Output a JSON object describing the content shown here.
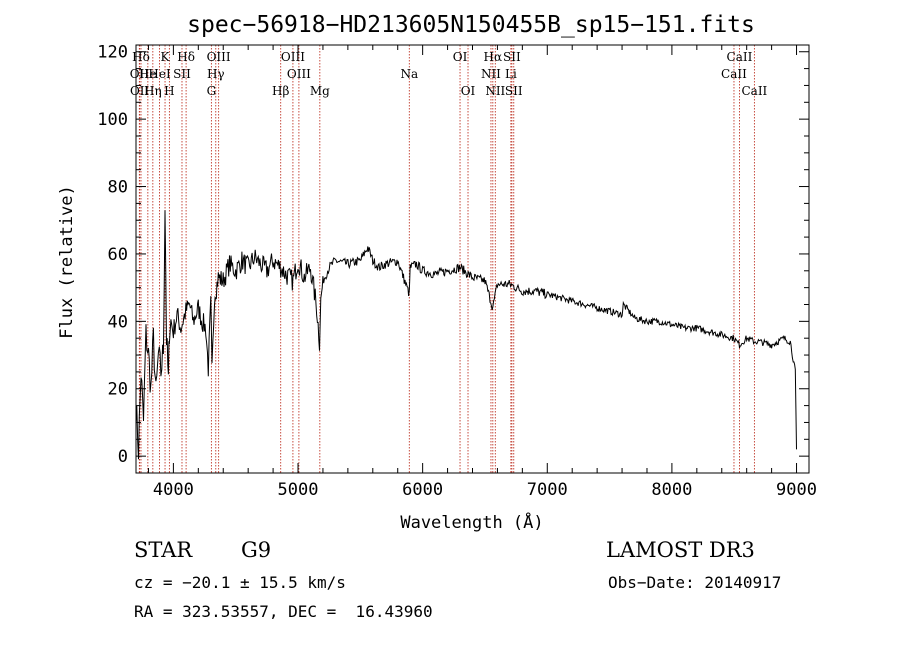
{
  "chart_data": {
    "type": "line",
    "title": "spec−56918−HD213605N150455B_sp15−151.fits",
    "xlabel": "Wavelength (Å)",
    "ylabel": "Flux (relative)",
    "xlim": [
      3700,
      9100
    ],
    "ylim": [
      -5,
      122
    ],
    "xticks": [
      4000,
      5000,
      6000,
      7000,
      8000,
      9000
    ],
    "xtick_labels": [
      "4000",
      "5000",
      "6000",
      "7000",
      "8000",
      "9000"
    ],
    "yticks": [
      0,
      20,
      40,
      60,
      80,
      100,
      120
    ],
    "ytick_labels": [
      "0",
      "20",
      "40",
      "60",
      "80",
      "100",
      "120"
    ],
    "series": [
      {
        "name": "spectrum",
        "color": "#000000",
        "x": [
          3700,
          3720,
          3740,
          3760,
          3780,
          3800,
          3820,
          3840,
          3860,
          3880,
          3900,
          3920,
          3933,
          3945,
          3960,
          3968,
          3980,
          4000,
          4030,
          4060,
          4100,
          4130,
          4160,
          4200,
          4230,
          4260,
          4280,
          4300,
          4310,
          4330,
          4345,
          4360,
          4400,
          4450,
          4500,
          4550,
          4600,
          4650,
          4700,
          4750,
          4800,
          4861,
          4900,
          4960,
          5000,
          5050,
          5100,
          5150,
          5172,
          5183,
          5200,
          5250,
          5300,
          5400,
          5500,
          5560,
          5600,
          5650,
          5700,
          5800,
          5893,
          5900,
          5950,
          6000,
          6100,
          6200,
          6300,
          6400,
          6500,
          6563,
          6600,
          6700,
          6800,
          6900,
          7000,
          7100,
          7200,
          7300,
          7400,
          7500,
          7600,
          7610,
          7700,
          7800,
          7900,
          8000,
          8100,
          8200,
          8300,
          8400,
          8498,
          8542,
          8600,
          8662,
          8700,
          8800,
          8900,
          8950,
          8990,
          9000
        ],
        "y": [
          15,
          2,
          25,
          10,
          36,
          30,
          20,
          35,
          18,
          30,
          25,
          32,
          75,
          35,
          22,
          38,
          40,
          37,
          42,
          38,
          43,
          45,
          40,
          44,
          40,
          38,
          26,
          45,
          25,
          48,
          50,
          53,
          52,
          57,
          55,
          58,
          56,
          59,
          57,
          55,
          58,
          56,
          54,
          52,
          58,
          53,
          56,
          44,
          34,
          46,
          52,
          56,
          58,
          57,
          58,
          62,
          58,
          56,
          57,
          58,
          48,
          56,
          57,
          55,
          54,
          55,
          56,
          53,
          52,
          44,
          51,
          51,
          49,
          49,
          48,
          47,
          46,
          45,
          44,
          43,
          42,
          45,
          41,
          40,
          40,
          39,
          38,
          38,
          37,
          36,
          35,
          33,
          35,
          34,
          34,
          33,
          35,
          34,
          25,
          2
        ]
      }
    ],
    "lines": [
      {
        "label": "Hδ",
        "x": 3740,
        "row": 0
      },
      {
        "label": "OII",
        "x": 3727,
        "row": 1
      },
      {
        "label": "OII",
        "x": 3729,
        "row": 2
      },
      {
        "label": "He",
        "x": 3795,
        "row": 1
      },
      {
        "label": "Hη",
        "x": 3835,
        "row": 2
      },
      {
        "label": "K",
        "x": 3933,
        "row": 0
      },
      {
        "label": "HeI",
        "x": 3889,
        "row": 1
      },
      {
        "label": "H",
        "x": 3968,
        "row": 2
      },
      {
        "label": "Hδ",
        "x": 4102,
        "row": 0
      },
      {
        "label": "SII",
        "x": 4069,
        "row": 1
      },
      {
        "label": "OIII",
        "x": 4363,
        "row": 0
      },
      {
        "label": "Hγ",
        "x": 4340,
        "row": 1
      },
      {
        "label": "G",
        "x": 4305,
        "row": 2
      },
      {
        "label": "Hβ",
        "x": 4861,
        "row": 2
      },
      {
        "label": "OIII",
        "x": 4959,
        "row": 0
      },
      {
        "label": "OIII",
        "x": 5007,
        "row": 1
      },
      {
        "label": "Mg",
        "x": 5175,
        "row": 2
      },
      {
        "label": "Na",
        "x": 5893,
        "row": 1
      },
      {
        "label": "OI",
        "x": 6300,
        "row": 0
      },
      {
        "label": "OI",
        "x": 6364,
        "row": 2
      },
      {
        "label": "Hα",
        "x": 6563,
        "row": 0
      },
      {
        "label": "NII",
        "x": 6548,
        "row": 1
      },
      {
        "label": "NII",
        "x": 6583,
        "row": 2
      },
      {
        "label": "SII",
        "x": 6716,
        "row": 0
      },
      {
        "label": "Li",
        "x": 6708,
        "row": 1
      },
      {
        "label": "SII",
        "x": 6731,
        "row": 2
      },
      {
        "label": "CaII",
        "x": 8542,
        "row": 0
      },
      {
        "label": "CaII",
        "x": 8498,
        "row": 1
      },
      {
        "label": "CaII",
        "x": 8662,
        "row": 2
      }
    ],
    "line_color": "#c0392b"
  },
  "info": {
    "object_class": "STAR",
    "subclass": "G9",
    "survey": "LAMOST DR3",
    "cz": "cz = −20.1 ± 15.5 km/s",
    "obs_date": "Obs−Date: 20140917",
    "coords": "RA = 323.53557, DEC =  16.43960"
  }
}
